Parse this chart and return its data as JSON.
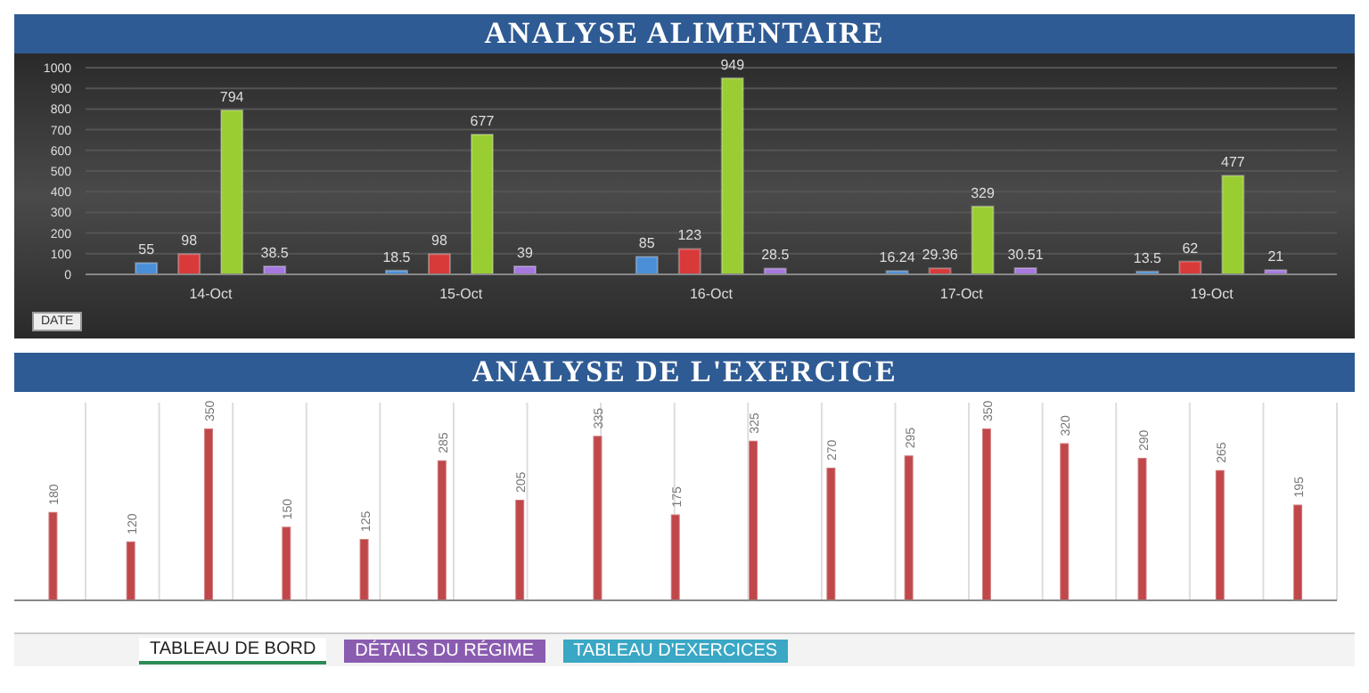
{
  "chart_data": [
    {
      "type": "bar",
      "title": "ANALYSE ALIMENTAIRE",
      "categories": [
        "14-Oct",
        "15-Oct",
        "16-Oct",
        "17-Oct",
        "19-Oct"
      ],
      "series": [
        {
          "color": "#4a8fd8",
          "values": [
            55,
            18.5,
            85,
            16.24,
            13.5
          ]
        },
        {
          "color": "#d83a3a",
          "values": [
            98,
            98,
            123,
            29.36,
            62
          ]
        },
        {
          "color": "#9acd32",
          "values": [
            794,
            677,
            949,
            329,
            477
          ]
        },
        {
          "color": "#a678e0",
          "values": [
            38.5,
            39,
            28.5,
            30.51,
            21
          ]
        }
      ],
      "ylim": [
        0,
        1000
      ],
      "yticks": [
        0,
        100,
        200,
        300,
        400,
        500,
        600,
        700,
        800,
        900,
        1000
      ],
      "grid": "y",
      "data_labels": true,
      "annotations": [
        "DATE"
      ]
    },
    {
      "type": "bar",
      "title": "ANALYSE DE L'EXERCICE",
      "categories": [
        null,
        null,
        null,
        null,
        null,
        null,
        null,
        null,
        null,
        null,
        null,
        null,
        null,
        null,
        null,
        null,
        null
      ],
      "values": [
        180,
        120,
        350,
        150,
        125,
        285,
        205,
        335,
        175,
        325,
        270,
        295,
        350,
        320,
        290,
        265,
        195
      ],
      "color": "#c0474a",
      "grid": "x",
      "data_labels": true,
      "annotations": [
        "TABLEAU DE BORD",
        "DÉTAILS DU RÉGIME",
        "TABLEAU D'EXERCICES"
      ]
    }
  ]
}
